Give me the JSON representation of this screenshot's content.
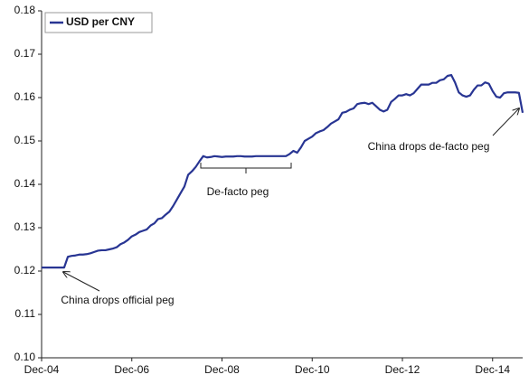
{
  "chart_data": {
    "type": "line",
    "x": [
      "2004-12",
      "2005-01",
      "2005-02",
      "2005-03",
      "2005-04",
      "2005-05",
      "2005-06",
      "2005-07",
      "2005-08",
      "2005-09",
      "2005-10",
      "2005-11",
      "2005-12",
      "2006-01",
      "2006-02",
      "2006-03",
      "2006-04",
      "2006-05",
      "2006-06",
      "2006-07",
      "2006-08",
      "2006-09",
      "2006-10",
      "2006-11",
      "2006-12",
      "2007-01",
      "2007-02",
      "2007-03",
      "2007-04",
      "2007-05",
      "2007-06",
      "2007-07",
      "2007-08",
      "2007-09",
      "2007-10",
      "2007-11",
      "2007-12",
      "2008-01",
      "2008-02",
      "2008-03",
      "2008-04",
      "2008-05",
      "2008-06",
      "2008-07",
      "2008-08",
      "2008-09",
      "2008-10",
      "2008-11",
      "2008-12",
      "2009-01",
      "2009-02",
      "2009-03",
      "2009-04",
      "2009-05",
      "2009-06",
      "2009-07",
      "2009-08",
      "2009-09",
      "2009-10",
      "2009-11",
      "2009-12",
      "2010-01",
      "2010-02",
      "2010-03",
      "2010-04",
      "2010-05",
      "2010-06",
      "2010-07",
      "2010-08",
      "2010-09",
      "2010-10",
      "2010-11",
      "2010-12",
      "2011-01",
      "2011-02",
      "2011-03",
      "2011-04",
      "2011-05",
      "2011-06",
      "2011-07",
      "2011-08",
      "2011-09",
      "2011-10",
      "2011-11",
      "2011-12",
      "2012-01",
      "2012-02",
      "2012-03",
      "2012-04",
      "2012-05",
      "2012-06",
      "2012-07",
      "2012-08",
      "2012-09",
      "2012-10",
      "2012-11",
      "2012-12",
      "2013-01",
      "2013-02",
      "2013-03",
      "2013-04",
      "2013-05",
      "2013-06",
      "2013-07",
      "2013-08",
      "2013-09",
      "2013-10",
      "2013-11",
      "2013-12",
      "2014-01",
      "2014-02",
      "2014-03",
      "2014-04",
      "2014-05",
      "2014-06",
      "2014-07",
      "2014-08",
      "2014-09",
      "2014-10",
      "2014-11",
      "2014-12",
      "2015-01",
      "2015-02",
      "2015-03",
      "2015-04",
      "2015-05",
      "2015-06",
      "2015-07",
      "2015-08"
    ],
    "series": [
      {
        "name": "USD per CNY",
        "color": "#283593",
        "values": [
          0.1208,
          0.1208,
          0.1208,
          0.1208,
          0.1208,
          0.1208,
          0.1208,
          0.1233,
          0.1235,
          0.1236,
          0.1238,
          0.1238,
          0.1239,
          0.1241,
          0.1244,
          0.1247,
          0.1248,
          0.1248,
          0.125,
          0.1252,
          0.1255,
          0.1262,
          0.1266,
          0.1272,
          0.128,
          0.1284,
          0.129,
          0.1293,
          0.1296,
          0.1305,
          0.131,
          0.132,
          0.1322,
          0.133,
          0.1337,
          0.135,
          0.1365,
          0.138,
          0.1395,
          0.1422,
          0.143,
          0.144,
          0.1453,
          0.1465,
          0.1462,
          0.1463,
          0.1465,
          0.1464,
          0.1463,
          0.1464,
          0.1464,
          0.1464,
          0.1465,
          0.1465,
          0.1464,
          0.1464,
          0.1464,
          0.1465,
          0.1465,
          0.1465,
          0.1465,
          0.1465,
          0.1465,
          0.1465,
          0.1465,
          0.1465,
          0.147,
          0.1477,
          0.1473,
          0.1485,
          0.15,
          0.1505,
          0.151,
          0.1518,
          0.1522,
          0.1525,
          0.1532,
          0.154,
          0.1545,
          0.155,
          0.1565,
          0.1567,
          0.1572,
          0.1575,
          0.1585,
          0.1587,
          0.1588,
          0.1585,
          0.1588,
          0.158,
          0.1572,
          0.1568,
          0.1572,
          0.159,
          0.1597,
          0.1605,
          0.1605,
          0.1608,
          0.1605,
          0.161,
          0.162,
          0.163,
          0.163,
          0.163,
          0.1634,
          0.1634,
          0.164,
          0.1642,
          0.165,
          0.1652,
          0.1635,
          0.1612,
          0.1605,
          0.1602,
          0.1605,
          0.1618,
          0.1628,
          0.1628,
          0.1635,
          0.1632,
          0.1615,
          0.1602,
          0.16,
          0.161,
          0.1612,
          0.1612,
          0.1612,
          0.1611,
          0.1565
        ]
      }
    ],
    "xlim": [
      "2004-12",
      "2015-08"
    ],
    "xticks": [
      {
        "value": "2004-12",
        "label": "Dec-04"
      },
      {
        "value": "2006-12",
        "label": "Dec-06"
      },
      {
        "value": "2008-12",
        "label": "Dec-08"
      },
      {
        "value": "2010-12",
        "label": "Dec-10"
      },
      {
        "value": "2012-12",
        "label": "Dec-12"
      },
      {
        "value": "2014-12",
        "label": "Dec-14"
      }
    ],
    "ylim": [
      0.1,
      0.18
    ],
    "yticks": [
      {
        "value": 0.1,
        "label": "0.10"
      },
      0.11,
      0.12,
      0.13,
      0.14,
      0.15,
      0.16,
      0.17,
      0.18
    ],
    "legend": "top-left",
    "annotations": [
      "China drops official peg",
      "De-facto peg",
      "China drops de-facto peg"
    ]
  }
}
